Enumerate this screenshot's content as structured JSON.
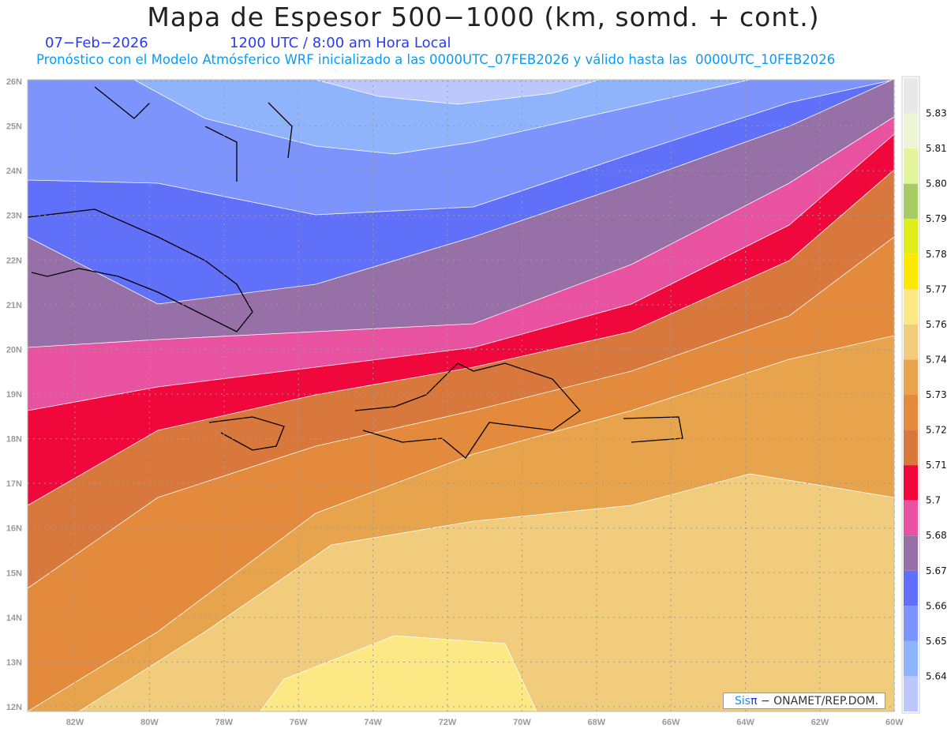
{
  "header": {
    "title": "Mapa de Espesor 500−1000 (km, somd. + cont.)",
    "date": "07−Feb−2026",
    "time": "1200 UTC / 8:00 am Hora Local",
    "subtitle": "Pronóstico con el Modelo Atmósferico WRF inicializado a las 0000UTC_07FEB2026 y válido hasta las  0000UTC_10FEB2026"
  },
  "map": {
    "lon_labels": [
      "82W",
      "80W",
      "78W",
      "76W",
      "74W",
      "72W",
      "70W",
      "68W",
      "66W",
      "64W",
      "62W",
      "60W"
    ],
    "lat_labels": [
      "26N",
      "25N",
      "24N",
      "23N",
      "22N",
      "21N",
      "20N",
      "19N",
      "18N",
      "17N",
      "16N",
      "15N",
      "14N",
      "13N",
      "12N"
    ],
    "credit": {
      "brand": "Sis",
      "pi": "π",
      "text": " −  ONAMET/REP.DOM."
    }
  },
  "colorbar": {
    "labels": [
      "5.831",
      "5.819",
      "5.807",
      "5.795",
      "5.783",
      "5.772",
      "5.76",
      "5.748",
      "5.736",
      "5.724",
      "5.712",
      "5.7",
      "5.688",
      "5.676",
      "5.664",
      "5.652",
      "5.64"
    ],
    "colors_top_to_bottom": [
      "#e8e8e8",
      "#eef5d6",
      "#e4f49c",
      "#a8cc64",
      "#e0ec1c",
      "#fce800",
      "#fce884",
      "#f0cc7c",
      "#e8a44c",
      "#e48a3c",
      "#d8783c",
      "#f0083c",
      "#e852a0",
      "#9870a8",
      "#6070f8",
      "#7c94fc",
      "#90b4fc",
      "#bcc8fc"
    ]
  }
}
